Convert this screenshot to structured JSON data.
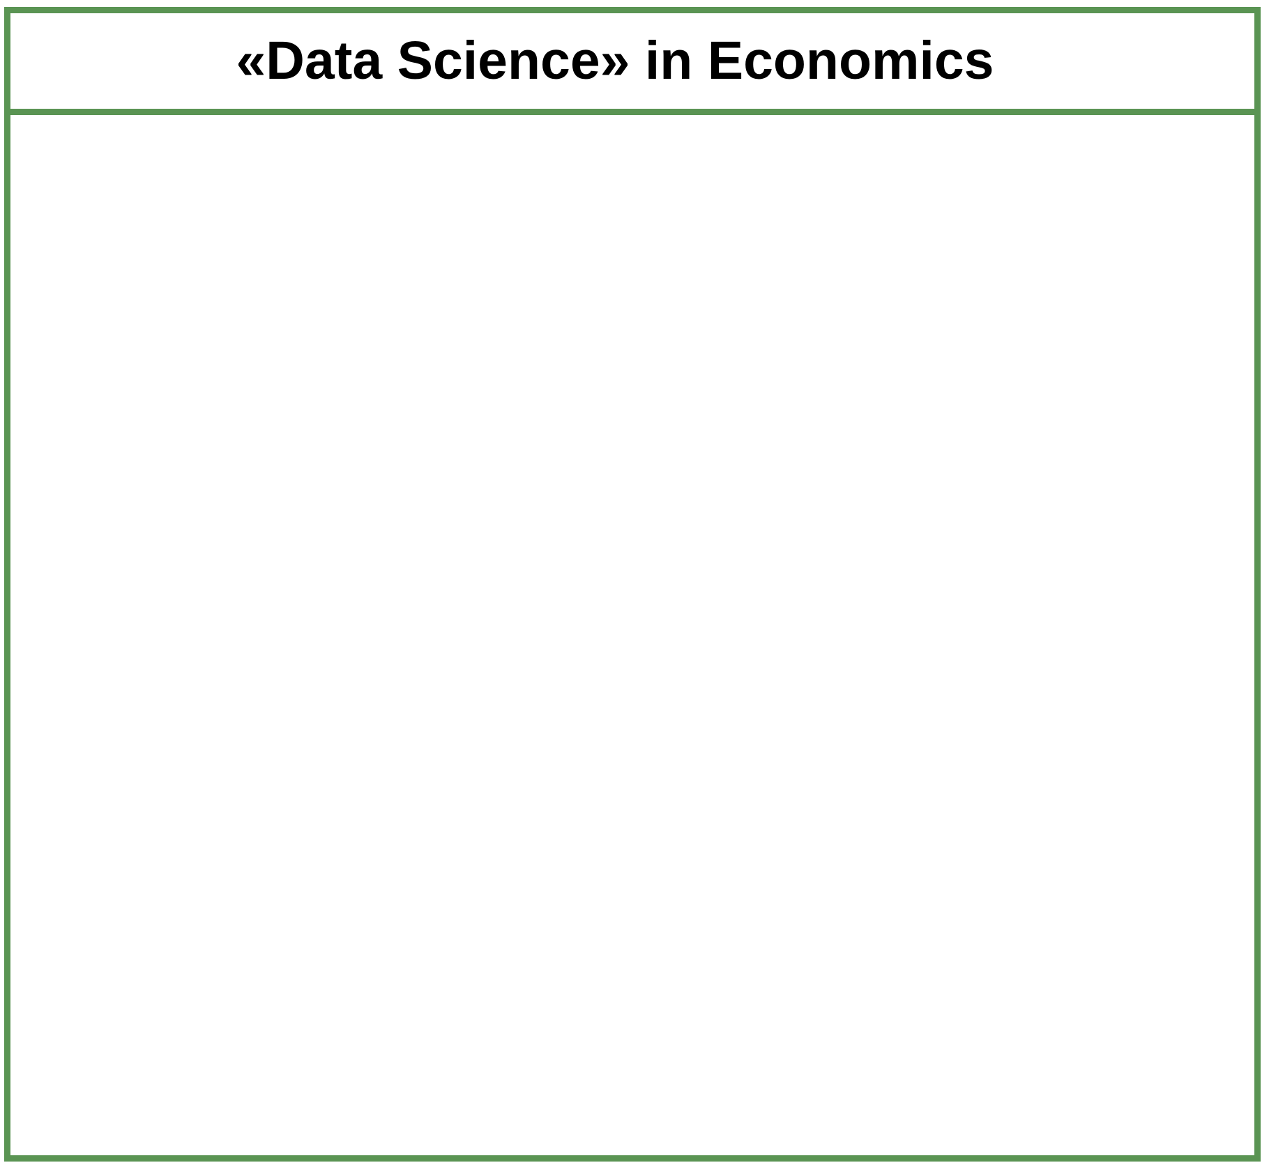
{
  "container": {
    "title": "«Data Science» in Economics",
    "border_color": "#5a9453"
  }
}
